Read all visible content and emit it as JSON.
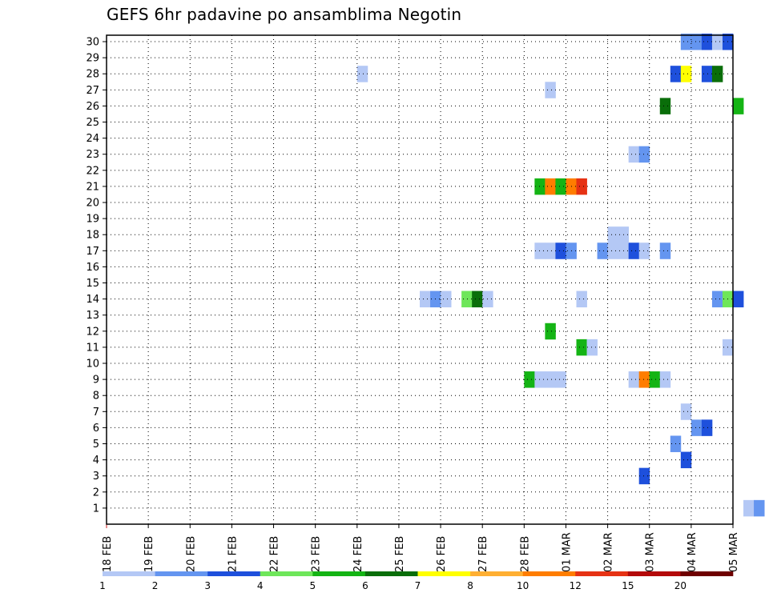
{
  "chart_data": {
    "type": "heatmap",
    "title": "GEFS 6hr padavine po ansamblima Negotin",
    "xlabel": "",
    "ylabel": "",
    "x_ticks": [
      "18 FEB",
      "19 FEB",
      "20 FEB",
      "21 FEB",
      "22 FEB",
      "23 FEB",
      "24 FEB",
      "25 FEB",
      "26 FEB",
      "27 FEB",
      "28 FEB",
      "01 MAR",
      "02 MAR",
      "03 MAR",
      "04 MAR",
      "05 MAR"
    ],
    "y_ticks": [
      1,
      2,
      3,
      4,
      5,
      6,
      7,
      8,
      9,
      10,
      11,
      12,
      13,
      14,
      15,
      16,
      17,
      18,
      19,
      20,
      21,
      22,
      23,
      24,
      25,
      26,
      27,
      28,
      29,
      30
    ],
    "x_unit": "6-hour steps after 18 FEB 00Z",
    "ylim": [
      0,
      30
    ],
    "grid": true,
    "legend_placement": "bottom",
    "colorbar": {
      "labels": [
        "1",
        "2",
        "3",
        "4",
        "5",
        "6",
        "7",
        "8",
        "10",
        "12",
        "15",
        "20"
      ],
      "colors": [
        "#b4c8f5",
        "#6495f0",
        "#1e50dc",
        "#6ee65a",
        "#14b414",
        "#0a6e0a",
        "#ffff00",
        "#ffaf32",
        "#ff7d00",
        "#e63214",
        "#b40a0a",
        "#6e0000"
      ]
    },
    "cells": [
      {
        "step": 61,
        "member": 0,
        "bin": 0
      },
      {
        "step": 62,
        "member": 0,
        "bin": 1
      },
      {
        "step": 51,
        "member": 2,
        "bin": 2
      },
      {
        "step": 55,
        "member": 3,
        "bin": 2
      },
      {
        "step": 54,
        "member": 4,
        "bin": 1
      },
      {
        "step": 56,
        "member": 5,
        "bin": 1
      },
      {
        "step": 57,
        "member": 5,
        "bin": 2
      },
      {
        "step": 55,
        "member": 6,
        "bin": 0
      },
      {
        "step": 40,
        "member": 8,
        "bin": 4
      },
      {
        "step": 41,
        "member": 8,
        "bin": 0
      },
      {
        "step": 42,
        "member": 8,
        "bin": 0
      },
      {
        "step": 43,
        "member": 8,
        "bin": 0
      },
      {
        "step": 50,
        "member": 8,
        "bin": 0
      },
      {
        "step": 51,
        "member": 8,
        "bin": 8
      },
      {
        "step": 52,
        "member": 8,
        "bin": 4
      },
      {
        "step": 53,
        "member": 8,
        "bin": 0
      },
      {
        "step": 45,
        "member": 10,
        "bin": 4
      },
      {
        "step": 46,
        "member": 10,
        "bin": 0
      },
      {
        "step": 59,
        "member": 10,
        "bin": 0
      },
      {
        "step": 42,
        "member": 11,
        "bin": 4
      },
      {
        "step": 30,
        "member": 13,
        "bin": 0
      },
      {
        "step": 31,
        "member": 13,
        "bin": 1
      },
      {
        "step": 32,
        "member": 13,
        "bin": 0
      },
      {
        "step": 34,
        "member": 13,
        "bin": 3
      },
      {
        "step": 35,
        "member": 13,
        "bin": 5
      },
      {
        "step": 36,
        "member": 13,
        "bin": 0
      },
      {
        "step": 45,
        "member": 13,
        "bin": 0
      },
      {
        "step": 58,
        "member": 13,
        "bin": 1
      },
      {
        "step": 59,
        "member": 13,
        "bin": 3
      },
      {
        "step": 60,
        "member": 13,
        "bin": 2
      },
      {
        "step": 41,
        "member": 16,
        "bin": 0
      },
      {
        "step": 42,
        "member": 16,
        "bin": 0
      },
      {
        "step": 43,
        "member": 16,
        "bin": 2
      },
      {
        "step": 44,
        "member": 16,
        "bin": 1
      },
      {
        "step": 47,
        "member": 16,
        "bin": 1
      },
      {
        "step": 48,
        "member": 16,
        "bin": 0
      },
      {
        "step": 49,
        "member": 16,
        "bin": 0
      },
      {
        "step": 50,
        "member": 16,
        "bin": 2
      },
      {
        "step": 51,
        "member": 16,
        "bin": 0
      },
      {
        "step": 53,
        "member": 16,
        "bin": 1
      },
      {
        "step": 48,
        "member": 17,
        "bin": 0
      },
      {
        "step": 49,
        "member": 17,
        "bin": 0
      },
      {
        "step": 41,
        "member": 20,
        "bin": 4
      },
      {
        "step": 42,
        "member": 20,
        "bin": 8
      },
      {
        "step": 43,
        "member": 20,
        "bin": 4
      },
      {
        "step": 44,
        "member": 20,
        "bin": 8
      },
      {
        "step": 45,
        "member": 20,
        "bin": 9
      },
      {
        "step": 50,
        "member": 22,
        "bin": 0
      },
      {
        "step": 51,
        "member": 22,
        "bin": 1
      },
      {
        "step": 53,
        "member": 25,
        "bin": 5
      },
      {
        "step": 60,
        "member": 25,
        "bin": 4
      },
      {
        "step": 42,
        "member": 26,
        "bin": 0
      },
      {
        "step": 24,
        "member": 27,
        "bin": 0
      },
      {
        "step": 54,
        "member": 27,
        "bin": 2
      },
      {
        "step": 55,
        "member": 27,
        "bin": 6
      },
      {
        "step": 57,
        "member": 27,
        "bin": 2
      },
      {
        "step": 58,
        "member": 27,
        "bin": 5
      },
      {
        "step": 55,
        "member": 29,
        "bin": 1
      },
      {
        "step": 56,
        "member": 29,
        "bin": 1
      },
      {
        "step": 57,
        "member": 29,
        "bin": 2
      },
      {
        "step": 58,
        "member": 29,
        "bin": 0
      },
      {
        "step": 59,
        "member": 29,
        "bin": 2
      }
    ]
  }
}
